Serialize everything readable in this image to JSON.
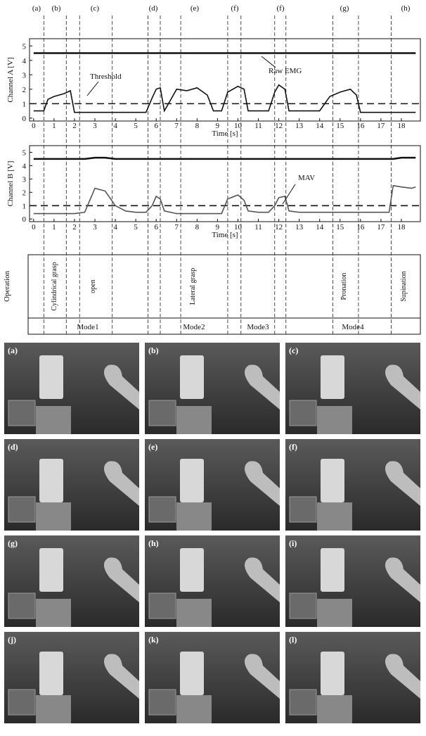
{
  "chart_data": [
    {
      "type": "line",
      "ylabel": "Channel A [V]",
      "xlabel": "Time [s]",
      "phase_labels": [
        "(a)",
        "(b)",
        "(c)",
        "(d)",
        "(e)",
        "(f)",
        "(f)",
        "(g)",
        "(h)"
      ],
      "phase_boundaries": [
        0.5,
        1.6,
        2.25,
        3.85,
        5.6,
        6.2,
        7.2,
        9.5,
        10.15,
        11.8,
        12.35,
        14.65,
        15.9,
        17.5
      ],
      "annotation": "Raw EMG",
      "threshold": {
        "value": 1,
        "label": "Threshold"
      },
      "xlim": [
        -0.2,
        18.93
      ],
      "ylim": [
        -0.2,
        5.5
      ],
      "xticks": [
        0,
        1,
        2,
        3,
        4,
        5,
        6,
        7,
        8,
        9,
        10,
        11,
        12,
        13,
        14,
        15,
        16,
        17,
        18
      ],
      "yticks": [
        0,
        1,
        2,
        3,
        4,
        5
      ],
      "x": [
        0,
        0.5,
        0.7,
        1,
        1.5,
        1.8,
        2,
        2.5,
        3,
        3.5,
        4,
        4.5,
        5,
        5.5,
        5.8,
        6,
        6.2,
        6.4,
        7,
        7.5,
        8,
        8.5,
        8.8,
        9.2,
        9.5,
        10,
        10.3,
        10.5,
        11,
        11.5,
        11.8,
        12,
        12.3,
        12.5,
        13,
        13.5,
        14,
        14.5,
        15,
        15.5,
        15.8,
        16,
        16.5,
        17,
        17.4,
        17.6,
        18,
        18.5,
        18.7
      ],
      "series": [
        {
          "color": "#111111",
          "values": [
            4.5,
            4.5,
            4.5,
            4.5,
            4.5,
            4.5,
            4.5,
            4.5,
            4.5,
            4.5,
            4.5,
            4.5,
            4.5,
            4.5,
            4.5,
            4.5,
            4.5,
            4.5,
            4.5,
            4.5,
            4.5,
            4.5,
            4.5,
            4.5,
            4.5,
            4.5,
            4.5,
            4.5,
            4.5,
            4.5,
            4.5,
            4.5,
            4.5,
            4.5,
            4.5,
            4.5,
            4.5,
            4.5,
            4.5,
            4.5,
            4.5,
            4.5,
            4.5,
            4.5,
            4.5,
            4.5,
            4.5,
            4.5,
            4.5
          ]
        },
        {
          "color": "#111111",
          "values": [
            0.5,
            0.5,
            1.3,
            1.5,
            1.7,
            1.9,
            0.4,
            0.4,
            0.4,
            0.4,
            0.4,
            0.4,
            0.4,
            0.4,
            1.4,
            2.0,
            2.1,
            0.5,
            2.0,
            1.9,
            2.1,
            1.6,
            0.5,
            0.5,
            1.8,
            2.2,
            2.0,
            0.5,
            0.5,
            0.5,
            1.8,
            2.3,
            2.0,
            0.5,
            0.5,
            0.5,
            0.5,
            1.5,
            1.8,
            2.0,
            1.6,
            0.4,
            0.4,
            0.4,
            0.4,
            0.4,
            0.4,
            0.4,
            0.4
          ]
        }
      ]
    },
    {
      "type": "line",
      "ylabel": "Channel B [V]",
      "xlabel": "Time [s]",
      "annotation": "MAV",
      "threshold": 1,
      "xlim": [
        -0.2,
        18.93
      ],
      "ylim": [
        -0.2,
        5.5
      ],
      "xticks": [
        0,
        1,
        2,
        3,
        4,
        5,
        6,
        7,
        8,
        9,
        10,
        11,
        12,
        13,
        14,
        15,
        16,
        17,
        18
      ],
      "yticks": [
        0,
        1,
        2,
        3,
        4,
        5
      ],
      "x": [
        0,
        0.5,
        0.7,
        1,
        1.5,
        1.8,
        2,
        2.5,
        3,
        3.5,
        4,
        4.5,
        5,
        5.5,
        5.8,
        6,
        6.2,
        6.4,
        7,
        7.5,
        8,
        8.5,
        8.8,
        9.2,
        9.5,
        10,
        10.3,
        10.5,
        11,
        11.5,
        11.8,
        12,
        12.3,
        12.5,
        13,
        13.5,
        14,
        14.5,
        15,
        15.5,
        15.8,
        16,
        16.5,
        17,
        17.4,
        17.6,
        18,
        18.5,
        18.7
      ],
      "series": [
        {
          "color": "#111111",
          "values": [
            4.5,
            4.5,
            4.5,
            4.5,
            4.5,
            4.5,
            4.5,
            4.5,
            4.6,
            4.6,
            4.5,
            4.5,
            4.5,
            4.5,
            4.5,
            4.5,
            4.5,
            4.5,
            4.5,
            4.5,
            4.5,
            4.5,
            4.5,
            4.5,
            4.5,
            4.5,
            4.5,
            4.5,
            4.5,
            4.5,
            4.5,
            4.5,
            4.5,
            4.5,
            4.5,
            4.5,
            4.5,
            4.5,
            4.5,
            4.5,
            4.5,
            4.5,
            4.5,
            4.5,
            4.5,
            4.5,
            4.6,
            4.6,
            4.6
          ]
        },
        {
          "color": "#555555",
          "values": [
            0.4,
            0.4,
            0.4,
            0.4,
            0.4,
            0.4,
            0.4,
            0.5,
            2.3,
            2.1,
            1.0,
            0.6,
            0.5,
            0.5,
            1.0,
            1.7,
            1.5,
            0.6,
            0.4,
            0.4,
            0.4,
            0.4,
            0.4,
            0.4,
            1.5,
            1.8,
            1.4,
            0.6,
            0.5,
            0.5,
            1.0,
            1.6,
            1.7,
            0.6,
            0.5,
            0.5,
            0.5,
            0.5,
            0.5,
            0.5,
            0.5,
            0.5,
            0.5,
            0.5,
            0.5,
            2.5,
            2.4,
            2.3,
            2.4
          ]
        }
      ]
    }
  ],
  "operation": {
    "header": "Operation",
    "items": [
      "Cylindrical grasp",
      "open",
      "Lateral grasp",
      "Pronation",
      "Supination"
    ],
    "modes": [
      "Mode1",
      "Mode2",
      "Mode3",
      "Mode4"
    ]
  },
  "photos": {
    "labels": [
      "(a)",
      "(b)",
      "(c)",
      "(d)",
      "(e)",
      "(f)",
      "(g)",
      "(h)",
      "(i)",
      "(j)",
      "(k)",
      "(l)"
    ]
  }
}
